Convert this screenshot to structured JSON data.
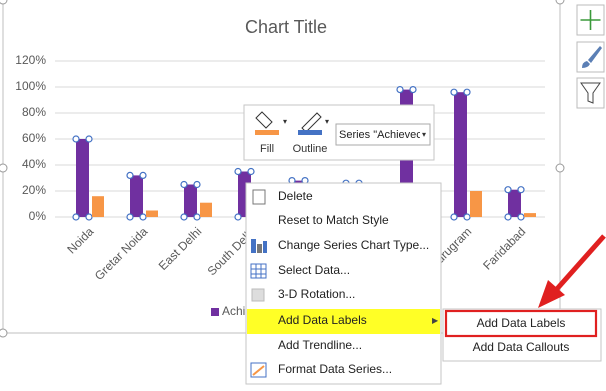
{
  "chart_data": {
    "type": "bar",
    "title": "Chart Title",
    "categories": [
      "Noida",
      "Gretar Noida",
      "East Delhi",
      "South Delhi",
      null,
      null,
      null,
      "Gurugram",
      "Faridabad"
    ],
    "series": [
      {
        "name": "Achieved",
        "color": "#7030a0",
        "values": [
          60,
          32,
          25,
          35,
          28,
          26,
          98,
          96,
          21
        ]
      },
      {
        "color": "#f79646",
        "values": [
          16,
          5,
          11,
          null,
          null,
          null,
          null,
          20,
          3
        ]
      }
    ],
    "ylim": [
      0,
      120
    ],
    "yticks": [
      {
        "value": 0,
        "label": "0%"
      },
      {
        "value": 20,
        "label": "20%"
      },
      {
        "value": 40,
        "label": "40%"
      },
      {
        "value": 60,
        "label": "60%"
      },
      {
        "value": 80,
        "label": "80%"
      },
      {
        "value": 100,
        "label": "100%"
      },
      {
        "value": 120,
        "label": "120%"
      }
    ],
    "grid": true
  },
  "toolbar": {
    "fill": "Fill",
    "outline": "Outline",
    "series_dropdown": "Series \"Achievec"
  },
  "context_menu": {
    "items": [
      "Delete",
      "Reset to Match Style",
      "Change Series Chart Type...",
      "Select Data...",
      "3-D Rotation...",
      "Add Data Labels",
      "Add Trendline...",
      "Format Data Series..."
    ]
  },
  "submenu": {
    "items": [
      "Add Data Labels",
      "Add Data Callouts"
    ]
  }
}
